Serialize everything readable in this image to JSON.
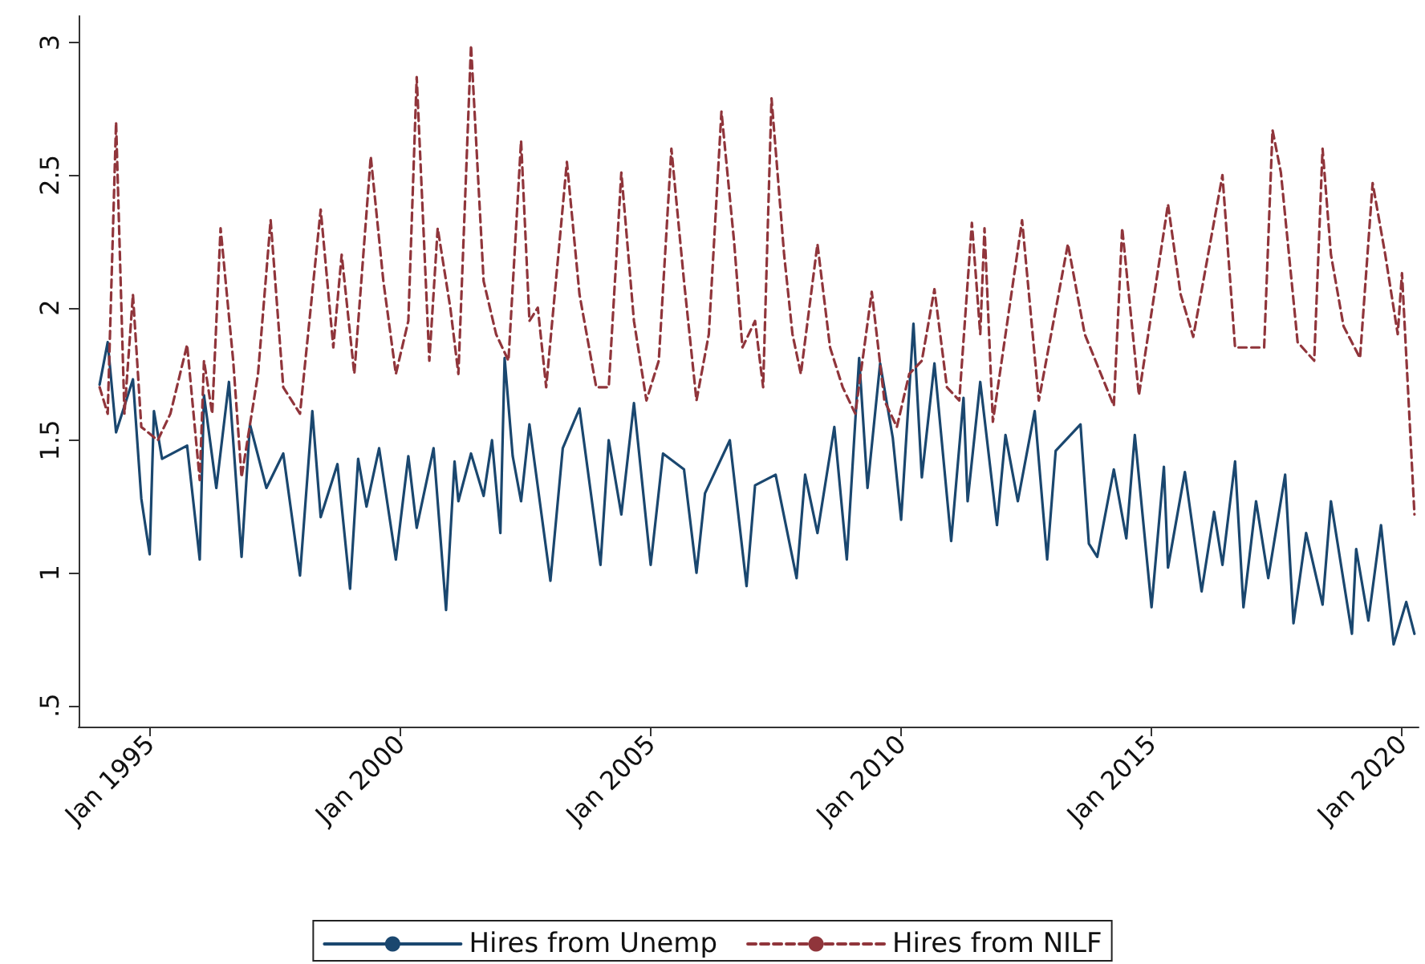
{
  "chart_data": {
    "type": "line",
    "legend": "bottom",
    "marker": "none",
    "xlim": [
      "1993-08",
      "2020-05"
    ],
    "xticks": [
      {
        "value": "1995-01",
        "label": "Jan 1995"
      },
      {
        "value": "2000-01",
        "label": "Jan 2000"
      },
      {
        "value": "2005-01",
        "label": "Jan 2005"
      },
      {
        "value": "2010-01",
        "label": "Jan 2010"
      },
      {
        "value": "2015-01",
        "label": "Jan 2015"
      },
      {
        "value": "2020-01",
        "label": "Jan 2020"
      }
    ],
    "ylim": [
      0.42,
      3.1
    ],
    "yticks": [
      {
        "value": 0.5,
        "label": ".5"
      },
      1,
      1.5,
      2,
      2.5,
      3
    ],
    "series": [
      {
        "name": "Hires from Unemp",
        "color": "#1a476f",
        "line_style": "solid",
        "x": [
          "1994-01",
          "1994-03",
          "1994-05",
          "1994-09",
          "1994-11",
          "1995-01",
          "1995-02",
          "1995-04",
          "1995-10",
          "1996-01",
          "1996-02",
          "1996-05",
          "1996-08",
          "1996-11",
          "1997-01",
          "1997-05",
          "1997-09",
          "1998-01",
          "1998-04",
          "1998-06",
          "1998-10",
          "1999-01",
          "1999-03",
          "1999-05",
          "1999-08",
          "1999-12",
          "2000-03",
          "2000-05",
          "2000-09",
          "2000-12",
          "2001-02",
          "2001-03",
          "2001-06",
          "2001-09",
          "2001-11",
          "2002-01",
          "2002-02",
          "2002-04",
          "2002-06",
          "2002-08",
          "2003-01",
          "2003-04",
          "2003-08",
          "2004-01",
          "2004-03",
          "2004-06",
          "2004-09",
          "2005-01",
          "2005-04",
          "2005-09",
          "2005-12",
          "2006-02",
          "2006-08",
          "2006-12",
          "2007-02",
          "2007-07",
          "2007-12",
          "2008-02",
          "2008-05",
          "2008-09",
          "2008-12",
          "2009-03",
          "2009-05",
          "2009-08",
          "2009-11",
          "2010-01",
          "2010-04",
          "2010-06",
          "2010-09",
          "2011-01",
          "2011-04",
          "2011-05",
          "2011-08",
          "2011-12",
          "2012-02",
          "2012-05",
          "2012-09",
          "2012-12",
          "2013-02",
          "2013-08",
          "2013-10",
          "2013-12",
          "2014-04",
          "2014-07",
          "2014-09",
          "2015-01",
          "2015-04",
          "2015-05",
          "2015-09",
          "2016-01",
          "2016-04",
          "2016-06",
          "2016-09",
          "2016-11",
          "2017-02",
          "2017-05",
          "2017-09",
          "2017-11",
          "2018-02",
          "2018-06",
          "2018-08",
          "2019-01",
          "2019-02",
          "2019-05",
          "2019-08",
          "2019-11",
          "2020-02",
          "2020-04"
        ],
        "values": [
          1.71,
          1.87,
          1.53,
          1.73,
          1.28,
          1.07,
          1.61,
          1.43,
          1.48,
          1.05,
          1.67,
          1.32,
          1.72,
          1.06,
          1.56,
          1.32,
          1.45,
          0.99,
          1.61,
          1.21,
          1.41,
          0.94,
          1.43,
          1.25,
          1.47,
          1.05,
          1.44,
          1.17,
          1.47,
          0.86,
          1.42,
          1.27,
          1.45,
          1.29,
          1.5,
          1.15,
          1.81,
          1.44,
          1.27,
          1.56,
          0.97,
          1.47,
          1.62,
          1.03,
          1.5,
          1.22,
          1.64,
          1.03,
          1.45,
          1.39,
          1.0,
          1.3,
          1.5,
          0.95,
          1.33,
          1.37,
          0.98,
          1.37,
          1.15,
          1.55,
          1.05,
          1.81,
          1.32,
          1.79,
          1.51,
          1.2,
          1.94,
          1.36,
          1.79,
          1.12,
          1.66,
          1.27,
          1.72,
          1.18,
          1.52,
          1.27,
          1.61,
          1.05,
          1.46,
          1.56,
          1.11,
          1.06,
          1.39,
          1.13,
          1.52,
          0.87,
          1.4,
          1.02,
          1.38,
          0.93,
          1.23,
          1.03,
          1.42,
          0.87,
          1.27,
          0.98,
          1.37,
          0.81,
          1.15,
          0.88,
          1.27,
          0.77,
          1.09,
          0.82,
          1.18,
          0.73,
          0.89,
          0.77
        ]
      },
      {
        "name": "Hires from NILF",
        "color": "#90353b",
        "line_style": "dashed",
        "x": [
          "1994-01",
          "1994-03",
          "1994-05",
          "1994-07",
          "1994-09",
          "1994-11",
          "1995-03",
          "1995-06",
          "1995-10",
          "1996-01",
          "1996-02",
          "1996-04",
          "1996-06",
          "1996-09",
          "1996-11",
          "1997-03",
          "1997-06",
          "1997-09",
          "1998-01",
          "1998-06",
          "1998-09",
          "1998-11",
          "1999-02",
          "1999-06",
          "1999-09",
          "1999-12",
          "2000-03",
          "2000-05",
          "2000-08",
          "2000-10",
          "2001-01",
          "2001-03",
          "2001-06",
          "2001-09",
          "2001-12",
          "2002-03",
          "2002-06",
          "2002-08",
          "2002-10",
          "2002-12",
          "2003-05",
          "2003-08",
          "2003-12",
          "2004-03",
          "2004-06",
          "2004-09",
          "2004-12",
          "2005-03",
          "2005-06",
          "2005-09",
          "2005-12",
          "2006-03",
          "2006-06",
          "2006-09",
          "2006-11",
          "2007-02",
          "2007-04",
          "2007-06",
          "2007-09",
          "2007-11",
          "2008-01",
          "2008-05",
          "2008-08",
          "2008-11",
          "2009-02",
          "2009-06",
          "2009-09",
          "2009-12",
          "2010-03",
          "2010-06",
          "2010-09",
          "2010-12",
          "2011-03",
          "2011-06",
          "2011-08",
          "2011-09",
          "2011-11",
          "2012-06",
          "2012-10",
          "2013-05",
          "2013-09",
          "2014-04",
          "2014-06",
          "2014-10",
          "2015-05",
          "2015-08",
          "2015-11",
          "2016-06",
          "2016-09",
          "2017-04",
          "2017-06",
          "2017-08",
          "2017-12",
          "2018-04",
          "2018-06",
          "2018-08",
          "2018-11",
          "2019-03",
          "2019-06",
          "2019-09",
          "2019-12",
          "2020-01",
          "2020-04"
        ],
        "values": [
          1.7,
          1.6,
          2.7,
          1.6,
          2.05,
          1.55,
          1.5,
          1.6,
          1.86,
          1.35,
          1.8,
          1.6,
          2.3,
          1.8,
          1.36,
          1.75,
          2.33,
          1.7,
          1.6,
          2.37,
          1.85,
          2.2,
          1.75,
          2.57,
          2.1,
          1.75,
          1.95,
          2.87,
          1.8,
          2.3,
          2.0,
          1.75,
          2.99,
          2.1,
          1.9,
          1.8,
          2.63,
          1.95,
          2.0,
          1.7,
          2.55,
          2.05,
          1.7,
          1.7,
          2.51,
          1.95,
          1.65,
          1.8,
          2.6,
          2.1,
          1.65,
          1.9,
          2.74,
          2.25,
          1.85,
          1.95,
          1.7,
          2.79,
          2.2,
          1.9,
          1.75,
          2.24,
          1.85,
          1.7,
          1.6,
          2.06,
          1.65,
          1.55,
          1.75,
          1.8,
          2.07,
          1.7,
          1.65,
          2.32,
          1.9,
          2.3,
          1.57,
          2.33,
          1.65,
          2.24,
          1.9,
          1.63,
          2.3,
          1.67,
          2.39,
          2.05,
          1.89,
          2.5,
          1.85,
          1.85,
          2.67,
          2.51,
          1.87,
          1.8,
          2.6,
          2.2,
          1.93,
          1.81,
          2.47,
          2.2,
          1.9,
          2.13,
          1.22
        ]
      }
    ]
  }
}
